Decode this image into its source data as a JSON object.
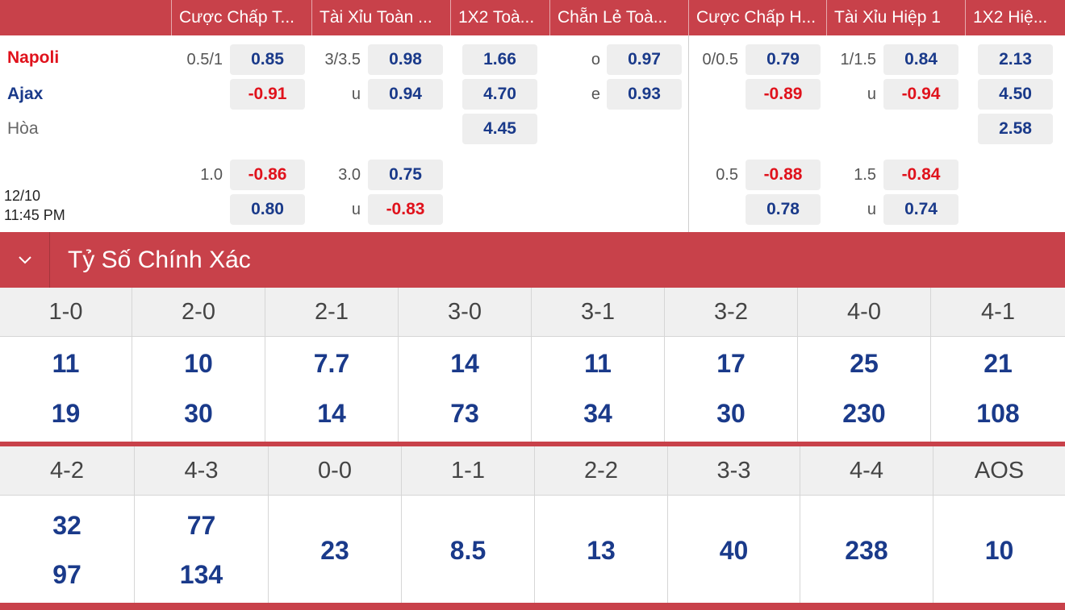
{
  "header": {
    "columns": [
      "Cược Chấp T...",
      "Tài Xỉu Toàn ...",
      "1X2 Toà...",
      "Chẵn Lẻ Toà...",
      "Cược Chấp H...",
      "Tài Xỉu Hiệp 1",
      "1X2 Hiệ..."
    ]
  },
  "match": {
    "home": "Napoli",
    "away": "Ajax",
    "draw": "Hòa",
    "date": "12/10",
    "time": "11:45 PM"
  },
  "odds": {
    "main": {
      "ah_full": {
        "line": "0.5/1",
        "home": "0.85",
        "away": "-0.91"
      },
      "ou_full": {
        "line": "3/3.5",
        "over": "0.98",
        "under_label": "u",
        "under": "0.94"
      },
      "x12_full": {
        "home": "1.66",
        "away": "4.70",
        "draw": "4.45"
      },
      "oe_full": {
        "odd_label": "o",
        "odd": "0.97",
        "even_label": "e",
        "even": "0.93"
      },
      "ah_half": {
        "line": "0/0.5",
        "home": "0.79",
        "away": "-0.89"
      },
      "ou_half": {
        "line": "1/1.5",
        "over": "0.84",
        "under_label": "u",
        "under": "-0.94"
      },
      "x12_half": {
        "home": "2.13",
        "away": "4.50",
        "draw": "2.58"
      }
    },
    "alt": {
      "ah_full": {
        "line": "1.0",
        "home": "-0.86",
        "away": "0.80"
      },
      "ou_full": {
        "line": "3.0",
        "over": "0.75",
        "under_label": "u",
        "under": "-0.83"
      },
      "ah_half": {
        "line": "0.5",
        "home": "-0.88",
        "away": "0.78"
      },
      "ou_half": {
        "line": "1.5",
        "over": "-0.84",
        "under_label": "u",
        "under": "0.74"
      }
    }
  },
  "exact_score": {
    "title": "Tỷ Số Chính Xác",
    "row1": [
      {
        "score": "1-0",
        "home": "11",
        "away": "19"
      },
      {
        "score": "2-0",
        "home": "10",
        "away": "30"
      },
      {
        "score": "2-1",
        "home": "7.7",
        "away": "14"
      },
      {
        "score": "3-0",
        "home": "14",
        "away": "73"
      },
      {
        "score": "3-1",
        "home": "11",
        "away": "34"
      },
      {
        "score": "3-2",
        "home": "17",
        "away": "30"
      },
      {
        "score": "4-0",
        "home": "25",
        "away": "230"
      },
      {
        "score": "4-1",
        "home": "21",
        "away": "108"
      }
    ],
    "row2": [
      {
        "score": "4-2",
        "home": "32",
        "away": "97"
      },
      {
        "score": "4-3",
        "home": "77",
        "away": "134"
      },
      {
        "score": "0-0",
        "value": "23"
      },
      {
        "score": "1-1",
        "value": "8.5"
      },
      {
        "score": "2-2",
        "value": "13"
      },
      {
        "score": "3-3",
        "value": "40"
      },
      {
        "score": "4-4",
        "value": "238"
      },
      {
        "score": "AOS",
        "value": "10"
      }
    ]
  },
  "colors": {
    "brand_red": "#c8414a",
    "odds_blue": "#1a3a8a",
    "odds_red": "#e0121c"
  }
}
